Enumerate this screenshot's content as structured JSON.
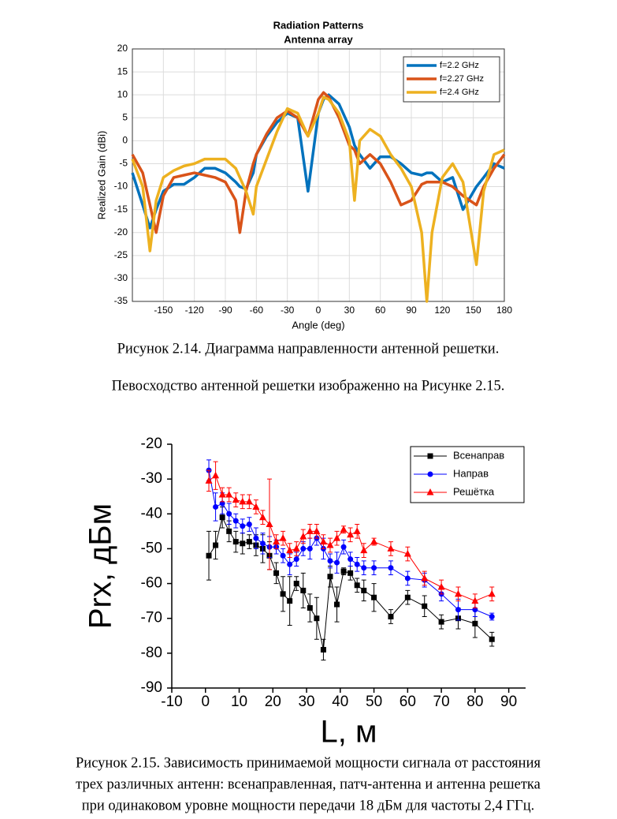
{
  "chart_data": [
    {
      "type": "line",
      "title": "Radiation Patterns",
      "subtitle": "Antenna array",
      "x_label": "Angle (deg)",
      "y_label": "Realized Gain (dBi)",
      "x": [
        -180,
        -170,
        -163,
        -157,
        -150,
        -140,
        -130,
        -120,
        -110,
        -100,
        -90,
        -80,
        -76,
        -70,
        -63,
        -60,
        -50,
        -40,
        -30,
        -20,
        -10,
        0,
        5,
        10,
        20,
        30,
        35,
        40,
        50,
        60,
        70,
        80,
        90,
        100,
        105,
        110,
        120,
        130,
        140,
        153,
        160,
        170,
        180
      ],
      "series": [
        {
          "name": "f=2.2 GHz",
          "color": "#0072bd",
          "values": [
            -7,
            -14,
            -19,
            -15,
            -11,
            -9.5,
            -9.5,
            -8,
            -6,
            -6,
            -7,
            -9,
            -10,
            -10.5,
            -7,
            -3,
            1,
            4,
            6,
            5,
            -11,
            6,
            9,
            10,
            8,
            3,
            -1,
            -3,
            -6,
            -3.5,
            -3.5,
            -5,
            -7,
            -7.5,
            -7,
            -7,
            -9,
            -8,
            -15,
            -10,
            -8,
            -5,
            -6
          ]
        },
        {
          "name": "f=2.27 GHz",
          "color": "#d95319",
          "values": [
            -3,
            -7,
            -14,
            -20,
            -12,
            -8,
            -7.5,
            -7,
            -7.5,
            -8,
            -9,
            -13,
            -20,
            -11,
            -5,
            -3,
            1.5,
            5,
            6.5,
            5,
            1,
            9,
            10.5,
            9.5,
            5,
            -1,
            -2,
            -5,
            -3,
            -5,
            -9,
            -14,
            -13,
            -9.5,
            -9,
            -9,
            -9,
            -10,
            -12,
            -14,
            -10,
            -6,
            -3
          ]
        },
        {
          "name": "f=2.4 GHz",
          "color": "#edb120",
          "values": [
            -4,
            -10,
            -24,
            -13,
            -8,
            -6.5,
            -5.5,
            -5,
            -4,
            -4,
            -4,
            -6,
            -8,
            -11,
            -16,
            -10,
            -4,
            2,
            7,
            6,
            1,
            6,
            9.5,
            9,
            6,
            0,
            -13,
            0,
            2.5,
            1,
            -3,
            -6,
            -10,
            -20,
            -35,
            -20,
            -8,
            -5,
            -9,
            -27,
            -11,
            -3,
            -2
          ]
        }
      ],
      "xlim": [
        -180,
        180
      ],
      "ylim": [
        -35,
        20
      ],
      "xticks": [
        -150,
        -120,
        -90,
        -60,
        -30,
        0,
        30,
        60,
        90,
        120,
        150,
        180
      ],
      "yticks": [
        -35,
        -30,
        -25,
        -20,
        -15,
        -10,
        -5,
        0,
        5,
        10,
        15,
        20
      ],
      "grid": true,
      "legend": "upper right"
    },
    {
      "type": "scatter",
      "x_label": "L, м",
      "y_label": "Prx, дБм",
      "connect": true,
      "series": [
        {
          "name": "Всенаправ",
          "color": "#000000",
          "marker": "square",
          "x": [
            1,
            3,
            5,
            7,
            9,
            11,
            13,
            15,
            17,
            19,
            21,
            23,
            25,
            27,
            29,
            31,
            33,
            35,
            37,
            39,
            41,
            43,
            45,
            47,
            50,
            55,
            60,
            65,
            70,
            75,
            80,
            85
          ],
          "values": [
            -52,
            -49,
            -41,
            -45,
            -48,
            -48.5,
            -48,
            -49,
            -50,
            -52,
            -57,
            -63,
            -65,
            -60,
            -62,
            -67,
            -70,
            -79,
            -58,
            -66,
            -56.5,
            -57,
            -60.5,
            -62,
            -64,
            -69.5,
            -64,
            -66.5,
            -71,
            -70,
            -71.5,
            -76
          ],
          "errors": [
            7,
            4,
            3,
            3,
            3,
            3,
            2,
            3,
            4,
            4,
            3,
            5,
            7,
            2,
            5,
            4,
            6,
            3,
            3,
            5,
            1,
            2,
            2,
            3,
            4,
            2,
            2,
            3,
            2,
            3,
            4,
            2
          ]
        },
        {
          "name": "Направ",
          "color": "#0000ff",
          "marker": "circle",
          "x": [
            1,
            3,
            5,
            7,
            9,
            11,
            13,
            15,
            17,
            19,
            21,
            23,
            25,
            27,
            29,
            31,
            33,
            35,
            37,
            39,
            41,
            43,
            45,
            47,
            50,
            55,
            60,
            65,
            70,
            75,
            80,
            85
          ],
          "values": [
            -27.5,
            -38,
            -37,
            -40,
            -42,
            -43.5,
            -43,
            -47,
            -48.5,
            -49.5,
            -49.5,
            -52,
            -54.5,
            -53,
            -50,
            -50,
            -47,
            -50,
            -53.5,
            -54,
            -49.5,
            -53,
            -54.5,
            -55.5,
            -55.5,
            -55.5,
            -58.5,
            -59,
            -63,
            -67.5,
            -67.5,
            -69.5
          ],
          "errors": [
            3,
            4,
            3,
            3,
            2,
            2,
            2,
            3,
            3,
            3,
            2,
            2,
            3,
            2,
            2,
            3,
            2,
            3,
            2,
            3,
            2,
            2,
            2,
            2,
            2,
            2,
            2,
            2,
            2,
            3,
            2,
            1
          ]
        },
        {
          "name": "Решётка",
          "color": "#ff0000",
          "marker": "triangle",
          "x": [
            1,
            3,
            5,
            7,
            9,
            11,
            13,
            15,
            17,
            19,
            21,
            23,
            25,
            27,
            29,
            31,
            33,
            35,
            37,
            39,
            41,
            43,
            45,
            47,
            50,
            55,
            60,
            65,
            70,
            75,
            80,
            85
          ],
          "values": [
            -30.5,
            -29,
            -34.5,
            -34.5,
            -36,
            -36.5,
            -36.5,
            -38,
            -41,
            -43,
            -48,
            -47,
            -50.5,
            -50,
            -46.5,
            -45,
            -45,
            -48,
            -49,
            -47,
            -44.5,
            -46,
            -45,
            -50.5,
            -48,
            -50,
            -51.5,
            -58.5,
            -61,
            -63,
            -65,
            -63
          ],
          "errors": [
            3,
            4,
            2,
            2,
            2,
            2,
            2,
            2,
            2,
            13,
            2,
            2,
            2,
            2,
            2,
            2,
            2,
            2,
            2,
            2,
            1,
            2,
            2,
            2,
            1,
            2,
            2,
            2,
            2,
            2,
            2,
            2
          ]
        }
      ],
      "xlim": [
        -10,
        95
      ],
      "ylim": [
        -90,
        -20
      ],
      "xticks": [
        -10,
        0,
        10,
        20,
        30,
        40,
        50,
        60,
        70,
        80,
        90
      ],
      "yticks": [
        -90,
        -80,
        -70,
        -60,
        -50,
        -40,
        -30,
        -20
      ],
      "grid": false,
      "legend": "upper right"
    }
  ],
  "document": {
    "caption_1": "Рисунок 2.14. Диаграмма направленности антенной решетки.",
    "paragraph": "Певосходство антенной решетки изображенно на Рисунке 2.15.",
    "caption_2": [
      "Рисунок 2.15. Зависимость принимаемой мощности сигнала от расстояния",
      "трех различных антенн: всенаправленная, патч-антенна и антенна решетка",
      "при одинаковом уровне мощности передачи 18 дБм для частоты 2,4 ГГц."
    ]
  }
}
